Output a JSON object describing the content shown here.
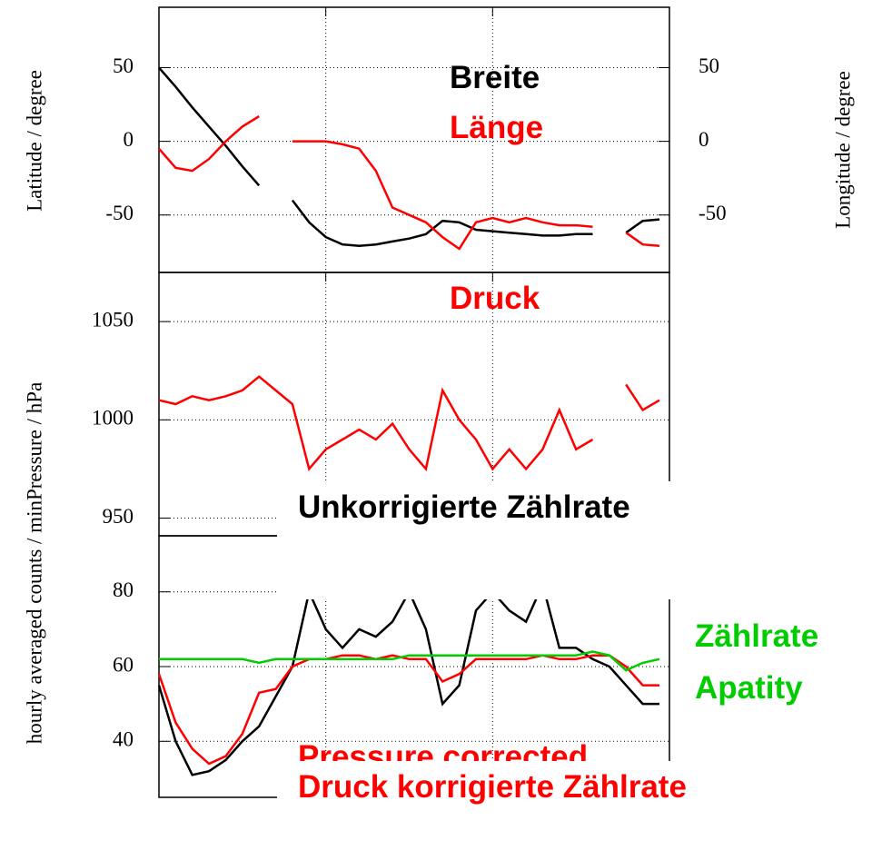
{
  "chart_data": [
    {
      "type": "line",
      "x": [
        0,
        0.1,
        0.2,
        0.3,
        0.4,
        0.5,
        0.6,
        0.7,
        0.8,
        0.9,
        1.0,
        1.1,
        1.2,
        1.3,
        1.4,
        1.5,
        1.6,
        1.7,
        1.8,
        1.9,
        2.0,
        2.1,
        2.2,
        2.3,
        2.4,
        2.5,
        2.6,
        2.7,
        2.8,
        2.9,
        3.0
      ],
      "xlim": [
        0,
        3.06
      ],
      "xticks": [
        1,
        2
      ],
      "ylim": [
        -89,
        91
      ],
      "yticks": [
        -50,
        0,
        50
      ],
      "y2lim": [
        -89,
        91
      ],
      "y2ticks": [
        -50,
        0,
        50
      ],
      "y_label": "Latitude / degree",
      "y2_label": "Longitude / degree",
      "grid": true,
      "series": [
        {
          "name": "Breite",
          "color": "#000000",
          "values": [
            50,
            37,
            23,
            10,
            -3,
            -17,
            -30,
            null,
            -40,
            -55,
            -65,
            -70,
            -71,
            -70,
            -68,
            -66,
            -63,
            -54,
            -55,
            -60,
            -61,
            -62,
            -63,
            -64,
            -64,
            -63,
            -63,
            null,
            -62,
            -54,
            -53
          ]
        },
        {
          "name": "Länge",
          "color": "#ff0000",
          "axis": "y2",
          "values": [
            -5,
            -18,
            -20,
            -12,
            0,
            10,
            17,
            null,
            0,
            0,
            0,
            -2,
            -5,
            -20,
            -45,
            -50,
            -55,
            -65,
            -73,
            -55,
            -52,
            -55,
            -52,
            -55,
            -57,
            -57,
            -58,
            null,
            -62,
            -70,
            -71
          ]
        }
      ]
    },
    {
      "type": "line",
      "x": [
        0,
        0.1,
        0.2,
        0.3,
        0.4,
        0.5,
        0.6,
        0.7,
        0.8,
        0.9,
        1.0,
        1.1,
        1.2,
        1.3,
        1.4,
        1.5,
        1.6,
        1.7,
        1.8,
        1.9,
        2.0,
        2.1,
        2.2,
        2.3,
        2.4,
        2.5,
        2.6,
        2.7,
        2.8,
        2.9,
        3.0
      ],
      "xlim": [
        0,
        3.06
      ],
      "xticks": [
        1,
        2
      ],
      "ylim": [
        941,
        1075
      ],
      "yticks": [
        950,
        1000,
        1050
      ],
      "grid": true,
      "series": [
        {
          "name": "Druck",
          "color": "#ff0000",
          "values": [
            1010,
            1008,
            1012,
            1010,
            1012,
            1015,
            1022,
            1015,
            1008,
            975,
            985,
            990,
            995,
            990,
            998,
            985,
            975,
            1015,
            1000,
            990,
            975,
            985,
            975,
            985,
            1005,
            985,
            990,
            null,
            1018,
            1005,
            1010
          ]
        }
      ]
    },
    {
      "type": "line",
      "x": [
        0,
        0.1,
        0.2,
        0.3,
        0.4,
        0.5,
        0.6,
        0.7,
        0.8,
        0.9,
        1.0,
        1.1,
        1.2,
        1.3,
        1.4,
        1.5,
        1.6,
        1.7,
        1.8,
        1.9,
        2.0,
        2.1,
        2.2,
        2.3,
        2.4,
        2.5,
        2.6,
        2.7,
        2.8,
        2.9,
        3.0
      ],
      "xlim": [
        0,
        3.06
      ],
      "xticks": [
        1,
        2
      ],
      "ylim": [
        25,
        95
      ],
      "yticks": [
        40,
        60,
        80
      ],
      "grid": true,
      "y_label": "hourly averaged counts / minPressure / hPa",
      "annotation": "Pressure corrected",
      "series": [
        {
          "name": "Unkorrigierte Zählrate",
          "color": "#000000",
          "values": [
            55,
            40,
            31,
            32,
            35,
            40,
            44,
            52,
            60,
            80,
            70,
            65,
            70,
            68,
            72,
            80,
            70,
            50,
            55,
            75,
            80,
            75,
            72,
            82,
            65,
            65,
            62,
            60,
            55,
            50,
            50
          ]
        },
        {
          "name": "Druck korrigierte Zählrate",
          "color": "#ff0000",
          "values": [
            58,
            45,
            38,
            34,
            36,
            42,
            53,
            54,
            60,
            62,
            62,
            63,
            63,
            62,
            63,
            62,
            62,
            56,
            58,
            62,
            62,
            62,
            62,
            63,
            62,
            62,
            63,
            63,
            60,
            55,
            55
          ]
        },
        {
          "name": "Zählrate Apatity",
          "color": "#00cc00",
          "values": [
            62,
            62,
            62,
            62,
            62,
            62,
            61,
            62,
            62,
            62,
            62,
            62,
            62,
            62,
            62,
            63,
            63,
            63,
            63,
            63,
            63,
            63,
            63,
            63,
            63,
            63,
            64,
            63,
            59,
            61,
            62
          ]
        }
      ]
    }
  ]
}
